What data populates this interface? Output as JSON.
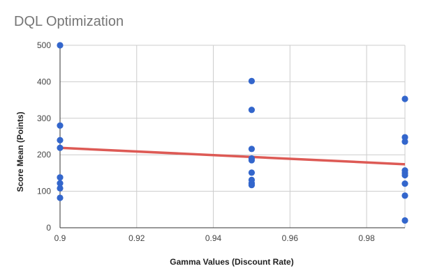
{
  "chart_data": {
    "type": "scatter",
    "title": "DQL Optimization",
    "xlabel": "Gamma Values (Discount Rate)",
    "ylabel": "Score Mean (Points)",
    "xlim": [
      0.9,
      0.99
    ],
    "ylim": [
      0,
      500
    ],
    "x_ticks": [
      0.9,
      0.92,
      0.94,
      0.96,
      0.98
    ],
    "x_tick_labels": [
      "0.9",
      "0.92",
      "0.94",
      "0.96",
      "0.98"
    ],
    "y_ticks": [
      0,
      100,
      200,
      300,
      400,
      500
    ],
    "y_tick_labels": [
      "0",
      "100",
      "200",
      "300",
      "400",
      "500"
    ],
    "grid": true,
    "series": [
      {
        "color": "#3366cc",
        "points": [
          {
            "x": 0.9,
            "y": 500
          },
          {
            "x": 0.9,
            "y": 280
          },
          {
            "x": 0.9,
            "y": 240
          },
          {
            "x": 0.9,
            "y": 219
          },
          {
            "x": 0.9,
            "y": 138
          },
          {
            "x": 0.9,
            "y": 122
          },
          {
            "x": 0.9,
            "y": 108
          },
          {
            "x": 0.9,
            "y": 82
          },
          {
            "x": 0.95,
            "y": 402
          },
          {
            "x": 0.95,
            "y": 323
          },
          {
            "x": 0.95,
            "y": 216
          },
          {
            "x": 0.95,
            "y": 190
          },
          {
            "x": 0.95,
            "y": 185
          },
          {
            "x": 0.95,
            "y": 151
          },
          {
            "x": 0.95,
            "y": 131
          },
          {
            "x": 0.95,
            "y": 122
          },
          {
            "x": 0.95,
            "y": 117
          },
          {
            "x": 0.99,
            "y": 353
          },
          {
            "x": 0.99,
            "y": 248
          },
          {
            "x": 0.99,
            "y": 236
          },
          {
            "x": 0.99,
            "y": 157
          },
          {
            "x": 0.99,
            "y": 150
          },
          {
            "x": 0.99,
            "y": 144
          },
          {
            "x": 0.99,
            "y": 121
          },
          {
            "x": 0.99,
            "y": 88
          },
          {
            "x": 0.99,
            "y": 20
          }
        ]
      }
    ],
    "trendline": {
      "color": "#dd5a55",
      "points": [
        {
          "x": 0.9,
          "y": 219
        },
        {
          "x": 0.99,
          "y": 174
        }
      ]
    }
  }
}
